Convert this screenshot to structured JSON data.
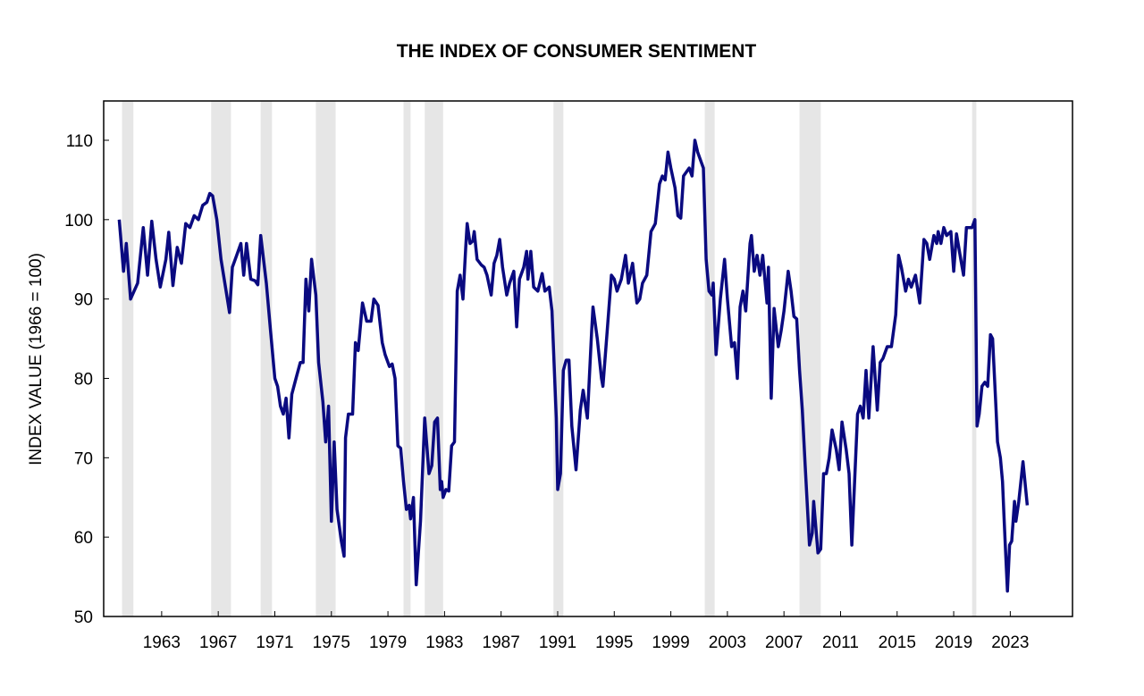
{
  "chart_data": {
    "type": "line",
    "title": "THE INDEX OF CONSUMER SENTIMENT",
    "xlabel": "",
    "ylabel": "INDEX VALUE (1966 = 100)",
    "ylim": [
      50,
      115
    ],
    "xlim": [
      1958.9,
      2027.4
    ],
    "yticks": [
      50,
      60,
      70,
      80,
      90,
      100,
      110
    ],
    "xticks": [
      1963,
      1967,
      1971,
      1975,
      1979,
      1983,
      1987,
      1991,
      1995,
      1999,
      2003,
      2007,
      2011,
      2015,
      2019,
      2023
    ],
    "grid": false,
    "line_color": "#0a0a80",
    "recession_color": "#e6e6e6",
    "recessions": [
      [
        1960.2,
        1961.0
      ],
      [
        1966.5,
        1967.9
      ],
      [
        1970.0,
        1970.8
      ],
      [
        1973.9,
        1975.3
      ],
      [
        1980.1,
        1980.6
      ],
      [
        1981.6,
        1982.9
      ],
      [
        1990.7,
        1991.4
      ],
      [
        2001.4,
        2002.1
      ],
      [
        2008.1,
        2009.6
      ],
      [
        2020.3,
        2020.6
      ]
    ],
    "series": [
      {
        "name": "Index of Consumer Sentiment",
        "x": [
          1960.0,
          1960.3,
          1960.5,
          1960.8,
          1961.3,
          1961.7,
          1962.0,
          1962.3,
          1962.6,
          1962.9,
          1963.3,
          1963.5,
          1963.8,
          1964.1,
          1964.4,
          1964.7,
          1965.0,
          1965.3,
          1965.6,
          1965.9,
          1966.2,
          1966.4,
          1966.6,
          1966.9,
          1967.2,
          1967.6,
          1967.8,
          1968.0,
          1968.3,
          1968.6,
          1968.8,
          1969.0,
          1969.3,
          1969.6,
          1969.8,
          1970.0,
          1970.4,
          1970.7,
          1971.0,
          1971.2,
          1971.4,
          1971.6,
          1971.8,
          1972.0,
          1972.2,
          1972.5,
          1972.8,
          1973.0,
          1973.2,
          1973.4,
          1973.6,
          1973.9,
          1974.1,
          1974.4,
          1974.6,
          1974.8,
          1975.0,
          1975.2,
          1975.4,
          1975.7,
          1975.9,
          1976.0,
          1976.2,
          1976.5,
          1976.7,
          1976.9,
          1977.2,
          1977.5,
          1977.8,
          1978.0,
          1978.3,
          1978.6,
          1978.8,
          1979.1,
          1979.3,
          1979.5,
          1979.7,
          1979.9,
          1980.1,
          1980.3,
          1980.5,
          1980.6,
          1980.8,
          1981.0,
          1981.3,
          1981.6,
          1981.9,
          1982.1,
          1982.3,
          1982.5,
          1982.7,
          1982.8,
          1982.9,
          1983.1,
          1983.3,
          1983.5,
          1983.7,
          1983.9,
          1984.1,
          1984.3,
          1984.5,
          1984.6,
          1984.8,
          1985.0,
          1985.1,
          1985.3,
          1985.6,
          1985.8,
          1986.0,
          1986.3,
          1986.5,
          1986.7,
          1986.9,
          1987.1,
          1987.4,
          1987.6,
          1987.9,
          1988.1,
          1988.3,
          1988.6,
          1988.8,
          1988.9,
          1989.1,
          1989.3,
          1989.6,
          1989.9,
          1990.1,
          1990.4,
          1990.6,
          1990.9,
          1991.0,
          1991.2,
          1991.4,
          1991.6,
          1991.8,
          1992.0,
          1992.3,
          1992.6,
          1992.8,
          1993.1,
          1993.4,
          1993.5,
          1993.8,
          1994.1,
          1994.2,
          1994.5,
          1994.8,
          1995.0,
          1995.2,
          1995.5,
          1995.8,
          1996.0,
          1996.3,
          1996.6,
          1996.8,
          1997.0,
          1997.3,
          1997.6,
          1997.9,
          1998.2,
          1998.4,
          1998.6,
          1998.8,
          1999.0,
          1999.3,
          1999.5,
          1999.7,
          1999.9,
          2000.1,
          2000.3,
          2000.5,
          2000.7,
          2000.9,
          2001.1,
          2001.3,
          2001.5,
          2001.7,
          2001.9,
          2002.0,
          2002.2,
          2002.5,
          2002.8,
          2003.0,
          2003.3,
          2003.5,
          2003.7,
          2003.9,
          2004.1,
          2004.3,
          2004.6,
          2004.7,
          2004.9,
          2005.1,
          2005.3,
          2005.5,
          2005.8,
          2005.9,
          2006.1,
          2006.3,
          2006.6,
          2006.8,
          2007.0,
          2007.3,
          2007.5,
          2007.7,
          2007.9,
          2008.1,
          2008.3,
          2008.5,
          2008.8,
          2009.0,
          2009.1,
          2009.4,
          2009.6,
          2009.8,
          2010.0,
          2010.2,
          2010.4,
          2010.7,
          2010.9,
          2011.1,
          2011.4,
          2011.6,
          2011.8,
          2012.2,
          2012.4,
          2012.6,
          2012.8,
          2013.0,
          2013.3,
          2013.6,
          2013.8,
          2014.0,
          2014.3,
          2014.6,
          2014.9,
          2015.1,
          2015.3,
          2015.6,
          2015.8,
          2016.0,
          2016.3,
          2016.6,
          2016.9,
          2017.1,
          2017.3,
          2017.6,
          2017.8,
          2017.9,
          2018.1,
          2018.3,
          2018.5,
          2018.8,
          2019.0,
          2019.2,
          2019.5,
          2019.7,
          2019.9,
          2020.3,
          2020.5,
          2020.65,
          2020.8,
          2021.0,
          2021.2,
          2021.4,
          2021.6,
          2021.75,
          2022.0,
          2022.1,
          2022.3,
          2022.45,
          2022.55,
          2022.65,
          2022.8,
          2022.95,
          2023.1,
          2023.3,
          2023.4,
          2023.6,
          2023.9,
          2024.2
        ],
        "values": [
          100,
          93.5,
          97,
          90,
          92,
          99,
          93,
          99.8,
          95,
          91.5,
          95,
          98.4,
          91.7,
          96.5,
          94.5,
          99.5,
          99,
          100.5,
          100,
          101.8,
          102.2,
          103.3,
          103,
          100,
          95,
          90.5,
          88.3,
          94,
          95.5,
          97,
          93,
          97,
          92.5,
          92.3,
          91.8,
          98,
          92,
          86,
          80,
          79,
          76.5,
          75.5,
          77.5,
          72.5,
          78,
          80,
          82,
          82,
          92.5,
          88.5,
          95,
          90.5,
          82,
          77,
          72,
          76.5,
          62,
          72,
          63.5,
          59.5,
          57.6,
          72.5,
          75.5,
          75.5,
          84.5,
          83.5,
          89.5,
          87.2,
          87.2,
          90,
          89.2,
          84.5,
          83,
          81.5,
          81.8,
          80,
          71.5,
          71.2,
          67,
          63.5,
          64,
          62.3,
          65,
          54,
          62,
          75,
          68,
          69,
          74.5,
          75,
          66,
          67,
          65,
          66,
          65.8,
          71.5,
          72,
          91,
          93,
          90,
          96.5,
          99.5,
          97,
          97.3,
          98.5,
          95,
          94.3,
          94,
          93,
          90.5,
          94.5,
          95.5,
          97.5,
          94,
          90.5,
          92,
          93.5,
          86.5,
          92.5,
          94,
          96,
          92.5,
          96,
          91.5,
          91,
          93.2,
          91,
          91.5,
          88.5,
          75,
          66,
          68,
          81,
          82.3,
          82.3,
          74,
          68.5,
          76,
          78.5,
          75,
          86,
          89,
          85,
          80,
          79,
          86,
          93,
          92.5,
          91,
          92.5,
          95.5,
          92,
          94.5,
          89.5,
          90,
          92,
          93,
          98.5,
          99.5,
          104.5,
          105.5,
          105,
          108.5,
          106.5,
          104,
          100.5,
          100.2,
          105.5,
          106,
          106.5,
          105.5,
          110,
          108.5,
          107.5,
          106.5,
          95,
          91,
          90.5,
          92,
          83,
          90,
          95,
          90,
          84,
          84.5,
          80,
          89,
          91,
          88.5,
          97,
          98,
          93.5,
          95.5,
          93,
          95.5,
          89.5,
          94,
          77.5,
          88.8,
          84,
          86,
          88.5,
          93.5,
          91,
          87.8,
          87.5,
          81,
          76,
          69,
          59,
          60.5,
          64.5,
          58,
          58.5,
          68,
          68,
          70,
          73.5,
          71,
          68.5,
          74.5,
          71,
          68,
          59,
          75.5,
          76.5,
          75,
          81,
          75,
          84,
          76,
          82,
          82.5,
          84,
          84,
          88,
          95.5,
          94,
          91,
          92.5,
          91.5,
          93,
          89.5,
          97.5,
          97,
          95,
          98,
          97,
          98.5,
          97,
          99,
          98,
          98.5,
          93.5,
          98.2,
          95,
          93,
          99,
          99,
          100,
          74,
          75.5,
          79,
          79.5,
          79,
          85.5,
          85,
          76,
          72,
          70,
          67,
          63,
          59,
          53.2,
          59,
          59.5,
          64.5,
          62,
          64.5,
          69.5,
          64
        ]
      }
    ]
  }
}
